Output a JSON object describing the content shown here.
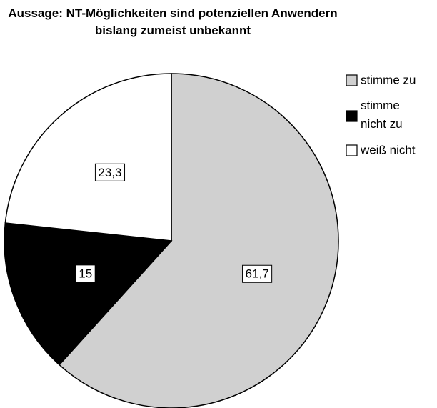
{
  "chart_data": {
    "type": "pie",
    "title": "Aussage: NT-Möglichkeiten sind potenziellen Anwendern bislang zumeist unbekannt",
    "categories": [
      "stimme zu",
      "stimme nicht zu",
      "weiß nicht"
    ],
    "values": [
      61.7,
      15,
      23.3
    ],
    "value_labels": [
      "61,7",
      "15",
      "23,3"
    ],
    "colors": [
      "#d0d0d0",
      "#000000",
      "#ffffff"
    ],
    "legend": "right"
  }
}
